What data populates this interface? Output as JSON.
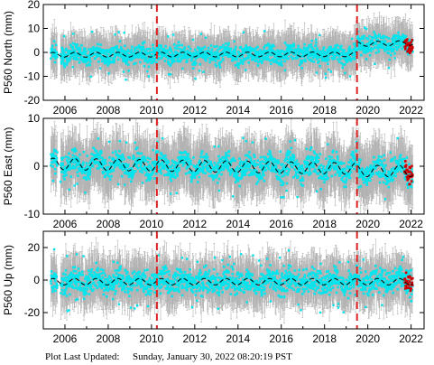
{
  "chart_data": [
    {
      "type": "scatter",
      "panel": "north",
      "ylabel": "P560 North (mm)",
      "xlim": [
        2005.0,
        2022.6
      ],
      "ylim": [
        -20,
        20
      ],
      "yticks": [
        -20,
        -10,
        0,
        10,
        20
      ],
      "xticks": [
        2006,
        2008,
        2010,
        2012,
        2014,
        2016,
        2018,
        2020,
        2022
      ],
      "grid": false,
      "event_lines": [
        2010.25,
        2019.5
      ],
      "data_start": 2005.35,
      "data_end": 2022.08,
      "data_gap": [
        2005.65,
        2005.8
      ],
      "model": {
        "segments": [
          {
            "x0": 2005.35,
            "y0": -1.0,
            "x1": 2019.5,
            "y1": -0.8
          },
          {
            "x0": 2019.5,
            "y0": 3.5,
            "x1": 2022.08,
            "y1": 4.0
          }
        ],
        "seasonal_amplitude": 1.0
      },
      "scatter_halfwidth": 3.5,
      "error_halfwidth": 8.0,
      "recent_red_x0": 2021.7
    },
    {
      "type": "scatter",
      "panel": "east",
      "ylabel": "P560 East (mm)",
      "xlim": [
        2005.0,
        2022.6
      ],
      "ylim": [
        -10,
        10
      ],
      "yticks": [
        -10,
        0,
        10
      ],
      "xticks": [
        2006,
        2008,
        2010,
        2012,
        2014,
        2016,
        2018,
        2020,
        2022
      ],
      "grid": false,
      "event_lines": [
        2010.25,
        2019.5
      ],
      "data_start": 2005.35,
      "data_end": 2022.08,
      "data_gap": [
        2005.65,
        2005.8
      ],
      "model": {
        "segments": [
          {
            "x0": 2005.35,
            "y0": 0.5,
            "x1": 2019.5,
            "y1": -0.5
          },
          {
            "x0": 2019.5,
            "y0": -1.0,
            "x1": 2022.08,
            "y1": -1.0
          }
        ],
        "seasonal_amplitude": 1.2
      },
      "scatter_halfwidth": 2.2,
      "error_halfwidth": 5.5,
      "recent_red_x0": 2021.7
    },
    {
      "type": "scatter",
      "panel": "up",
      "ylabel": "P560 Up (mm)",
      "xlim": [
        2005.0,
        2022.6
      ],
      "ylim": [
        -30,
        30
      ],
      "yticks": [
        -20,
        0,
        20
      ],
      "xticks": [
        2006,
        2008,
        2010,
        2012,
        2014,
        2016,
        2018,
        2020,
        2022
      ],
      "grid": false,
      "event_lines": [
        2010.25,
        2019.5
      ],
      "data_start": 2005.35,
      "data_end": 2022.08,
      "data_gap": [
        2005.65,
        2005.8
      ],
      "model": {
        "segments": [
          {
            "x0": 2005.35,
            "y0": -1.0,
            "x1": 2019.5,
            "y1": -1.0
          },
          {
            "x0": 2019.5,
            "y0": -1.0,
            "x1": 2022.08,
            "y1": -1.0
          }
        ],
        "seasonal_amplitude": 2.0
      },
      "scatter_halfwidth": 6.5,
      "error_halfwidth": 14.0,
      "recent_red_x0": 2021.7
    }
  ],
  "colors": {
    "observation": "#00e5ee",
    "error_bar": "#b3b3b3",
    "model_line": "#000000",
    "event_line": "#dd2222",
    "recent_points": "#cc0000"
  },
  "footer": {
    "label": "Plot Last Updated:",
    "value": "Sunday, January 30, 2022 08:20:19 PST"
  }
}
